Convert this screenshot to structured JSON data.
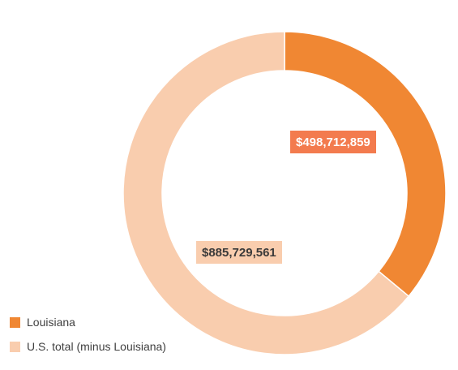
{
  "chart_data": {
    "type": "pie",
    "variant": "donut",
    "categories": [
      "Louisiana",
      "U.S. total (minus Louisiana)"
    ],
    "values": [
      498712859,
      885729561
    ],
    "value_labels": [
      "$498,712,859",
      "$885,729,561"
    ],
    "colors": [
      "#f08733",
      "#f9cdae"
    ],
    "label_backgrounds": [
      "#f37b4e",
      "#f9cdae"
    ],
    "legend_position": "bottom-left",
    "title": "",
    "xlabel": "",
    "ylabel": ""
  }
}
